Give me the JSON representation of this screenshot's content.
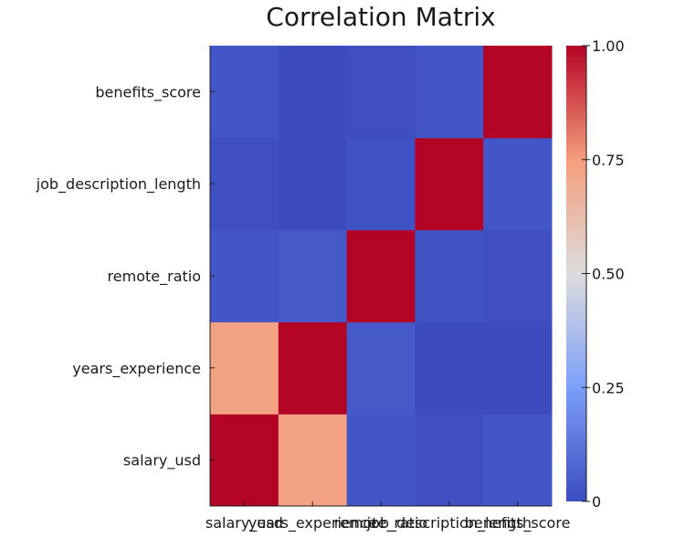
{
  "chart_data": {
    "type": "heatmap",
    "title": "Correlation Matrix",
    "xlabel": "",
    "ylabel": "",
    "variables": [
      "salary_usd",
      "years_experience",
      "remote_ratio",
      "job_description_length",
      "benefits_score"
    ],
    "matrix": [
      [
        1.0,
        0.73,
        0.03,
        0.01,
        0.03
      ],
      [
        0.73,
        1.0,
        0.04,
        0.0,
        0.0
      ],
      [
        0.03,
        0.04,
        1.0,
        0.02,
        0.01
      ],
      [
        0.01,
        0.0,
        0.02,
        1.0,
        0.03
      ],
      [
        0.03,
        0.0,
        0.01,
        0.03,
        1.0
      ]
    ],
    "colorbar": {
      "ticks": [
        "0",
        "0.25",
        "0.50",
        "0.75",
        "1.00"
      ],
      "range": [
        0,
        1
      ],
      "colormap": "coolwarm"
    },
    "grid": false
  }
}
